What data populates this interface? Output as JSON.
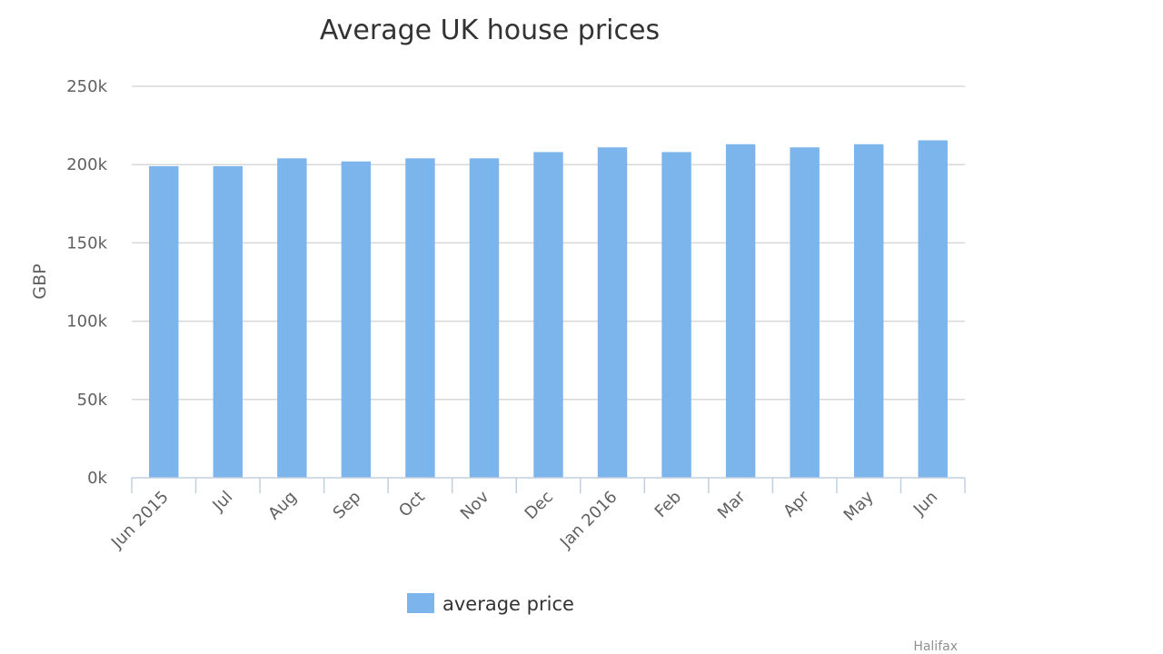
{
  "chart_data": {
    "type": "bar",
    "title": "Average UK house prices",
    "ylabel": "GBP",
    "xlabel": "",
    "categories": [
      "Jun 2015",
      "Jul",
      "Aug",
      "Sep",
      "Oct",
      "Nov",
      "Dec",
      "Jan 2016",
      "Feb",
      "Mar",
      "Apr",
      "May",
      "Jun"
    ],
    "series": [
      {
        "name": "average price",
        "color": "#7cb5ec",
        "values": [
          199000,
          199000,
          204000,
          202000,
          204000,
          204000,
          208000,
          211000,
          208000,
          213000,
          211000,
          213000,
          215500
        ]
      }
    ],
    "ylim": [
      0,
      250000
    ],
    "yticks": [
      0,
      50000,
      100000,
      150000,
      200000,
      250000
    ],
    "ytick_labels": [
      "0k",
      "50k",
      "100k",
      "150k",
      "200k",
      "250k"
    ],
    "grid": true,
    "legend_position": "bottom-center",
    "credit": "Halifax"
  }
}
